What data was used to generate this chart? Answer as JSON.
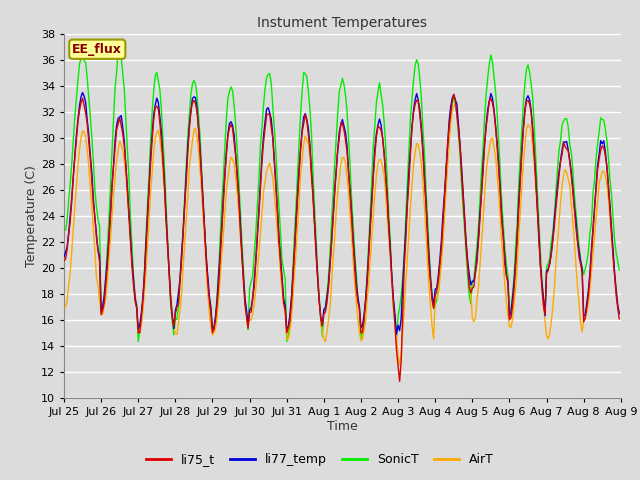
{
  "title": "Instument Temperatures",
  "xlabel": "Time",
  "ylabel": "Temperature (C)",
  "ylim": [
    10,
    38
  ],
  "yticks": [
    10,
    12,
    14,
    16,
    18,
    20,
    22,
    24,
    26,
    28,
    30,
    32,
    34,
    36,
    38
  ],
  "xtick_labels": [
    "Jul 25",
    "Jul 26",
    "Jul 27",
    "Jul 28",
    "Jul 29",
    "Jul 30",
    "Jul 31",
    "Aug 1",
    "Aug 2",
    "Aug 3",
    "Aug 4",
    "Aug 5",
    "Aug 6",
    "Aug 7",
    "Aug 8",
    "Aug 9"
  ],
  "n_days": 15,
  "background_color": "#dcdcdc",
  "plot_bg_color": "#dcdcdc",
  "grid_color": "#ffffff",
  "colors": {
    "li75_t": "#dd0000",
    "li77_temp": "#0000dd",
    "SonicT": "#00ee00",
    "AirT": "#ffaa00"
  },
  "legend_box": {
    "text": "EE_flux",
    "facecolor": "#ffff99",
    "edgecolor": "#999900",
    "textcolor": "#880000"
  }
}
